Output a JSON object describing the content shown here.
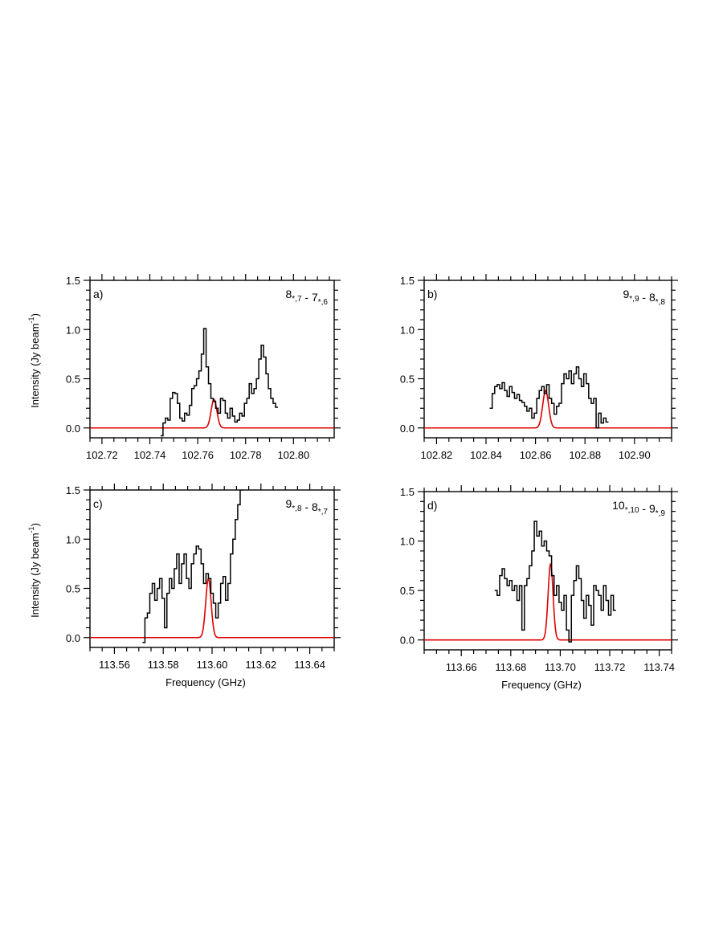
{
  "chart_data": [
    {
      "type": "line",
      "panel_label": "a)",
      "transition": {
        "main1": "8",
        "sub1": "*,7",
        "sep": " - ",
        "main2": "7",
        "sub2": "*,6"
      },
      "xlabel": "",
      "ylabel_main": "Intensity (Jy beam",
      "ylabel_sup": "-1",
      "ylabel_end": ")",
      "xlim": [
        102.715,
        102.817
      ],
      "ylim": [
        -0.1,
        1.5
      ],
      "xticks": [
        102.72,
        102.74,
        102.76,
        102.78,
        102.8
      ],
      "xtick_labels": [
        "102.72",
        "102.74",
        "102.76",
        "102.78",
        "102.80"
      ],
      "yticks": [
        0.0,
        0.5,
        1.0,
        1.5
      ],
      "ytick_labels": [
        "0.0",
        "0.5",
        "1.0",
        "1.5"
      ],
      "series": [
        {
          "role": "observed",
          "color": "#000000",
          "x": [
            102.745,
            102.746,
            102.747,
            102.748,
            102.749,
            102.75,
            102.751,
            102.752,
            102.753,
            102.754,
            102.755,
            102.756,
            102.757,
            102.758,
            102.759,
            102.76,
            102.761,
            102.762,
            102.763,
            102.764,
            102.765,
            102.766,
            102.767,
            102.768,
            102.769,
            102.77,
            102.771,
            102.772,
            102.773,
            102.774,
            102.775,
            102.776,
            102.777,
            102.778,
            102.779,
            102.78,
            102.781,
            102.782,
            102.783,
            102.784,
            102.785,
            102.786,
            102.787,
            102.788,
            102.789,
            102.79,
            102.791,
            102.792,
            102.793
          ],
          "y": [
            -0.08,
            0.05,
            0.1,
            0.08,
            0.3,
            0.36,
            0.35,
            0.25,
            0.1,
            0.07,
            0.15,
            0.13,
            0.23,
            0.4,
            0.43,
            0.5,
            0.58,
            0.75,
            1.01,
            0.62,
            0.45,
            0.3,
            0.27,
            0.2,
            0.15,
            0.3,
            0.28,
            0.15,
            0.1,
            0.2,
            0.12,
            0.06,
            0.08,
            0.15,
            0.12,
            0.25,
            0.3,
            0.45,
            0.35,
            0.4,
            0.5,
            0.7,
            0.84,
            0.72,
            0.55,
            0.4,
            0.3,
            0.25,
            0.21
          ]
        },
        {
          "role": "model",
          "color": "#e00000",
          "center": 102.7668,
          "amplitude": 0.29,
          "sigma": 0.0012
        }
      ]
    },
    {
      "type": "line",
      "panel_label": "b)",
      "transition": {
        "main1": "9",
        "sub1": "*,9",
        "sep": " - ",
        "main2": "8",
        "sub2": "*,8"
      },
      "xlabel": "",
      "xlim": [
        102.815,
        102.915
      ],
      "ylim": [
        -0.1,
        1.5
      ],
      "xticks": [
        102.82,
        102.84,
        102.86,
        102.88,
        102.9
      ],
      "xtick_labels": [
        "102.82",
        "102.84",
        "102.86",
        "102.88",
        "102.90"
      ],
      "yticks": [
        0.0,
        0.5,
        1.0,
        1.5
      ],
      "ytick_labels": [
        "0.0",
        "0.5",
        "1.0",
        "1.5"
      ],
      "series": [
        {
          "role": "observed",
          "color": "#000000",
          "x": [
            102.842,
            102.843,
            102.844,
            102.845,
            102.846,
            102.847,
            102.848,
            102.849,
            102.85,
            102.851,
            102.852,
            102.853,
            102.854,
            102.855,
            102.856,
            102.857,
            102.858,
            102.859,
            102.86,
            102.861,
            102.862,
            102.863,
            102.864,
            102.865,
            102.866,
            102.867,
            102.868,
            102.869,
            102.87,
            102.871,
            102.872,
            102.873,
            102.874,
            102.875,
            102.876,
            102.877,
            102.878,
            102.879,
            102.88,
            102.881,
            102.882,
            102.883,
            102.884,
            102.885,
            102.886,
            102.887,
            102.888,
            102.889
          ],
          "y": [
            0.2,
            0.35,
            0.42,
            0.44,
            0.4,
            0.46,
            0.38,
            0.32,
            0.42,
            0.36,
            0.3,
            0.34,
            0.28,
            0.26,
            0.22,
            0.17,
            0.2,
            0.1,
            0.15,
            0.3,
            0.38,
            0.42,
            0.35,
            0.44,
            0.3,
            0.25,
            0.14,
            0.22,
            0.25,
            0.45,
            0.55,
            0.5,
            0.58,
            0.45,
            0.55,
            0.62,
            0.5,
            0.42,
            0.55,
            0.45,
            0.3,
            0.25,
            0.3,
            0.0,
            0.15,
            0.05,
            0.1,
            0.06
          ]
        },
        {
          "role": "model",
          "color": "#e00000",
          "center": 102.8641,
          "amplitude": 0.38,
          "sigma": 0.0012
        }
      ]
    },
    {
      "type": "line",
      "panel_label": "c)",
      "transition": {
        "main1": "9",
        "sub1": "*,8",
        "sep": " - ",
        "main2": "8",
        "sub2": "*,7"
      },
      "xlabel": "Frequency (GHz)",
      "ylabel_main": "Intensity (Jy beam",
      "ylabel_sup": "-1",
      "ylabel_end": ")",
      "xlim": [
        113.55,
        113.65
      ],
      "ylim": [
        -0.1,
        1.5
      ],
      "xticks": [
        113.56,
        113.58,
        113.6,
        113.62,
        113.64
      ],
      "xtick_labels": [
        "113.56",
        "113.58",
        "113.60",
        "113.62",
        "113.64"
      ],
      "yticks": [
        0.0,
        0.5,
        1.0,
        1.5
      ],
      "ytick_labels": [
        "0.0",
        "0.5",
        "1.0",
        "1.5"
      ],
      "series": [
        {
          "role": "observed",
          "color": "#000000",
          "x": [
            113.572,
            113.573,
            113.574,
            113.575,
            113.576,
            113.577,
            113.578,
            113.579,
            113.58,
            113.581,
            113.582,
            113.583,
            113.584,
            113.585,
            113.586,
            113.587,
            113.588,
            113.589,
            113.59,
            113.591,
            113.592,
            113.593,
            113.594,
            113.595,
            113.596,
            113.597,
            113.598,
            113.599,
            113.6,
            113.601,
            113.602,
            113.603,
            113.604,
            113.605,
            113.606,
            113.607,
            113.608,
            113.609,
            113.61,
            113.611,
            113.612,
            113.613
          ],
          "y": [
            -0.05,
            0.2,
            0.25,
            0.45,
            0.55,
            0.38,
            0.5,
            0.6,
            0.4,
            0.1,
            0.45,
            0.6,
            0.5,
            0.7,
            0.85,
            0.55,
            0.75,
            0.85,
            0.6,
            0.5,
            0.75,
            0.85,
            0.93,
            0.9,
            0.75,
            0.55,
            0.65,
            0.6,
            0.45,
            0.35,
            0.2,
            0.35,
            0.55,
            0.62,
            0.38,
            0.55,
            0.85,
            1.0,
            1.2,
            1.35,
            1.5,
            1.7
          ]
        },
        {
          "role": "model",
          "color": "#e00000",
          "center": 113.5985,
          "amplitude": 0.6,
          "sigma": 0.0011
        }
      ]
    },
    {
      "type": "line",
      "panel_label": "d)",
      "transition": {
        "main1": "10",
        "sub1": "*,10",
        "sep": " - ",
        "main2": "9",
        "sub2": "*,9"
      },
      "xlabel": "Frequency (GHz)",
      "xlim": [
        113.645,
        113.745
      ],
      "ylim": [
        -0.1,
        1.5
      ],
      "xticks": [
        113.66,
        113.68,
        113.7,
        113.72,
        113.74
      ],
      "xtick_labels": [
        "113.66",
        "113.68",
        "113.70",
        "113.72",
        "113.74"
      ],
      "yticks": [
        0.0,
        0.5,
        1.0,
        1.5
      ],
      "ytick_labels": [
        "0.0",
        "0.5",
        "1.0",
        "1.5"
      ],
      "series": [
        {
          "role": "observed",
          "color": "#000000",
          "x": [
            113.674,
            113.675,
            113.676,
            113.677,
            113.678,
            113.679,
            113.68,
            113.681,
            113.682,
            113.683,
            113.684,
            113.685,
            113.686,
            113.687,
            113.688,
            113.689,
            113.69,
            113.691,
            113.692,
            113.693,
            113.694,
            113.695,
            113.696,
            113.697,
            113.698,
            113.699,
            113.7,
            113.701,
            113.702,
            113.703,
            113.704,
            113.705,
            113.706,
            113.707,
            113.708,
            113.709,
            113.71,
            113.711,
            113.712,
            113.713,
            113.714,
            113.715,
            113.716,
            113.717,
            113.718,
            113.719,
            113.72,
            113.721,
            113.722
          ],
          "y": [
            0.5,
            0.45,
            0.65,
            0.72,
            0.62,
            0.55,
            0.6,
            0.5,
            0.55,
            0.4,
            0.55,
            0.1,
            0.55,
            0.62,
            0.75,
            0.9,
            1.2,
            1.05,
            1.1,
            0.95,
            1.0,
            0.9,
            0.85,
            0.65,
            0.45,
            0.55,
            0.38,
            0.3,
            0.45,
            0.1,
            -0.02,
            0.45,
            0.6,
            0.75,
            0.62,
            0.4,
            0.22,
            0.45,
            0.35,
            0.15,
            0.55,
            0.5,
            0.45,
            0.3,
            0.55,
            0.4,
            0.25,
            0.45,
            0.3
          ]
        },
        {
          "role": "model",
          "color": "#e00000",
          "center": 113.6961,
          "amplitude": 0.77,
          "sigma": 0.001
        }
      ]
    }
  ]
}
